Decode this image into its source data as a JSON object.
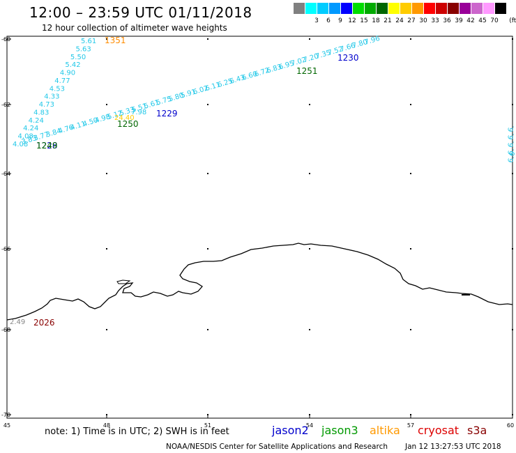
{
  "header": {
    "title": "12:00 – 23:59 UTC 01/11/2018",
    "subtitle": "12 hour collection of altimeter wave heights"
  },
  "color_scale": {
    "swatches": [
      {
        "label": "",
        "color": "#808080"
      },
      {
        "label": "3",
        "color": "#00ffff"
      },
      {
        "label": "6",
        "color": "#00ccff"
      },
      {
        "label": "9",
        "color": "#0099ff"
      },
      {
        "label": "12",
        "color": "#0000ff"
      },
      {
        "label": "15",
        "color": "#00dd00"
      },
      {
        "label": "18",
        "color": "#00aa00"
      },
      {
        "label": "21",
        "color": "#006600"
      },
      {
        "label": "24",
        "color": "#ffff00"
      },
      {
        "label": "27",
        "color": "#ffcc00"
      },
      {
        "label": "30",
        "color": "#ff9900"
      },
      {
        "label": "33",
        "color": "#ff0000"
      },
      {
        "label": "36",
        "color": "#cc0000"
      },
      {
        "label": "39",
        "color": "#880000"
      },
      {
        "label": "42",
        "color": "#990099"
      },
      {
        "label": "45",
        "color": "#cc66cc"
      },
      {
        "label": "70",
        "color": "#ff99ff"
      },
      {
        "label": "",
        "color": "#000000"
      }
    ],
    "unit": "(ft)"
  },
  "map": {
    "lat_labels": [
      {
        "value": "-60"
      },
      {
        "value": "-62"
      },
      {
        "value": "-64"
      },
      {
        "value": "-66"
      },
      {
        "value": "-68"
      },
      {
        "value": "-70"
      }
    ],
    "lon_labels": [
      {
        "value": "45"
      },
      {
        "value": "48"
      },
      {
        "value": "51"
      },
      {
        "value": "54"
      },
      {
        "value": "57"
      },
      {
        "value": "60"
      }
    ],
    "track_a_values": [
      "5.61",
      "5.63",
      "5.50",
      "5.42",
      "4.90",
      "4.77",
      "4.53",
      "4.33",
      "4.73",
      "4.83",
      "4.24",
      "4.24",
      "4.08",
      "4.08"
    ],
    "track_b_values": [
      "3.83",
      "3.77",
      "3.84",
      "4.76",
      "4.11",
      "4.50",
      "4.98",
      "5.12",
      "5.33",
      "5.51",
      "5.61",
      "5.75",
      "5.80",
      "5.91",
      "6.02",
      "6.11",
      "6.25",
      "6.43",
      "6.60",
      "6.72",
      "6.83",
      "6.95",
      "7.02",
      "7.20",
      "7.35",
      "7.52",
      "7.66",
      "7.80",
      "7.96"
    ],
    "track_b_short_labels": [
      "7.98",
      "24.40"
    ],
    "right_edge_values": [
      "6.",
      "6.",
      "6.",
      "6.",
      "6.6"
    ],
    "bottom_left_value": "2.49",
    "times": [
      {
        "label": "1351",
        "color": "#ff8c00"
      },
      {
        "label": "1230",
        "color": "#0000cc"
      },
      {
        "label": "1251",
        "color": "#006600"
      },
      {
        "label": "1229",
        "color": "#0000cc"
      },
      {
        "label": "1250",
        "color": "#006600"
      },
      {
        "label": "1228",
        "color": "#0000cc"
      },
      {
        "label": "1249",
        "color": "#006600"
      },
      {
        "label": "2026",
        "color": "#880000"
      }
    ]
  },
  "footer": {
    "note": "note: 1) Time is in UTC; 2) SWH is in feet",
    "satellites": [
      {
        "label": "jason2",
        "color": "#0000cc"
      },
      {
        "label": "jason3",
        "color": "#009900"
      },
      {
        "label": "altika",
        "color": "#ff9900"
      },
      {
        "label": "cryosat",
        "color": "#dd0000"
      },
      {
        "label": "s3a",
        "color": "#880000"
      }
    ],
    "credit": "NOAA/NESDIS Center for Satellite Applications and Research",
    "timestamp": "Jan 12 13:27:53 UTC 2018"
  }
}
